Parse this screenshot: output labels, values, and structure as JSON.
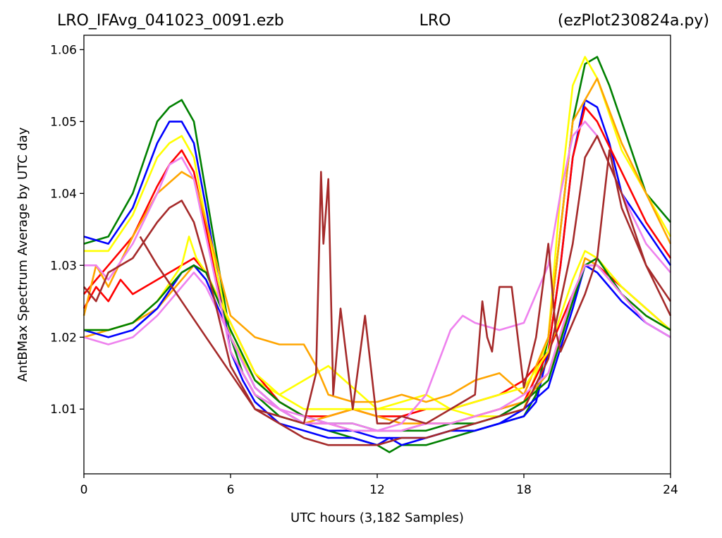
{
  "titles": {
    "left": "LRO_IFAvg_041023_0091.ezb",
    "center": "LRO",
    "right": "(ezPlot230824a.py)"
  },
  "chart_data": {
    "type": "line",
    "xlabel": "UTC hours  (3,182 Samples)",
    "ylabel": "AntBMax Spectrum Average by UTC day",
    "xlim": [
      0,
      24
    ],
    "ylim": [
      1.001,
      1.062
    ],
    "xticks": [
      0,
      6,
      12,
      18,
      24
    ],
    "xtick_labels": [
      "0",
      "6",
      "12",
      "18",
      "24"
    ],
    "yticks": [
      1.01,
      1.02,
      1.03,
      1.04,
      1.05,
      1.06
    ],
    "ytick_labels": [
      "1.01",
      "1.02",
      "1.03",
      "1.04",
      "1.05",
      "1.06"
    ],
    "grid": false,
    "legend": "none",
    "series": [
      {
        "color": "#008000",
        "x": [
          0,
          1,
          2,
          3,
          3.5,
          4,
          4.5,
          5,
          6,
          6.5,
          7,
          8,
          9,
          10,
          11,
          12,
          12.5,
          13,
          14,
          15,
          16,
          17,
          18,
          18.5,
          19,
          19.5,
          20,
          20.5,
          21,
          21.5,
          22,
          23,
          24
        ],
        "y": [
          1.033,
          1.034,
          1.04,
          1.05,
          1.052,
          1.053,
          1.05,
          1.04,
          1.02,
          1.015,
          1.012,
          1.009,
          1.008,
          1.007,
          1.006,
          1.005,
          1.004,
          1.005,
          1.005,
          1.006,
          1.007,
          1.008,
          1.009,
          1.012,
          1.02,
          1.035,
          1.05,
          1.058,
          1.059,
          1.055,
          1.05,
          1.04,
          1.036
        ]
      },
      {
        "color": "#0000ff",
        "x": [
          0,
          1,
          2,
          3,
          3.5,
          4,
          4.5,
          5,
          6,
          6.5,
          7,
          8,
          9,
          10,
          11,
          12,
          12.5,
          13,
          14,
          15,
          16,
          17,
          18,
          18.5,
          19,
          19.5,
          20,
          20.5,
          21,
          21.5,
          22,
          23,
          24
        ],
        "y": [
          1.034,
          1.033,
          1.038,
          1.047,
          1.05,
          1.05,
          1.047,
          1.038,
          1.018,
          1.014,
          1.011,
          1.008,
          1.007,
          1.006,
          1.006,
          1.005,
          1.006,
          1.005,
          1.006,
          1.007,
          1.007,
          1.008,
          1.009,
          1.011,
          1.018,
          1.03,
          1.045,
          1.053,
          1.052,
          1.047,
          1.04,
          1.035,
          1.03
        ]
      },
      {
        "color": "#ffff00",
        "x": [
          0,
          1,
          2,
          3,
          3.5,
          4,
          4.5,
          5,
          6,
          7,
          8,
          9,
          10,
          11,
          12,
          13,
          14,
          15,
          16,
          17,
          18,
          19,
          19.5,
          20,
          20.5,
          21,
          22,
          23,
          24
        ],
        "y": [
          1.032,
          1.032,
          1.037,
          1.045,
          1.047,
          1.048,
          1.045,
          1.036,
          1.02,
          1.014,
          1.012,
          1.014,
          1.016,
          1.013,
          1.01,
          1.011,
          1.012,
          1.01,
          1.009,
          1.009,
          1.01,
          1.02,
          1.04,
          1.055,
          1.059,
          1.056,
          1.046,
          1.04,
          1.034
        ]
      },
      {
        "color": "#ff0000",
        "x": [
          0,
          1,
          2,
          3,
          3.5,
          4,
          4.5,
          5,
          6,
          7,
          8,
          9,
          10,
          11,
          12,
          13,
          14,
          15,
          16,
          17,
          18,
          19,
          19.5,
          20,
          20.5,
          21,
          22,
          23,
          24
        ],
        "y": [
          1.026,
          1.03,
          1.034,
          1.041,
          1.044,
          1.046,
          1.043,
          1.035,
          1.018,
          1.012,
          1.01,
          1.008,
          1.008,
          1.007,
          1.007,
          1.007,
          1.008,
          1.008,
          1.009,
          1.01,
          1.011,
          1.018,
          1.03,
          1.045,
          1.052,
          1.05,
          1.043,
          1.036,
          1.031
        ]
      },
      {
        "color": "#ff0000",
        "x": [
          0,
          0.5,
          1,
          1.5,
          2,
          3,
          4,
          4.5,
          5,
          6,
          7,
          8,
          9,
          10,
          11,
          12,
          13,
          14,
          15,
          16,
          17,
          18,
          19,
          20,
          20.5,
          21,
          22,
          23,
          24
        ],
        "y": [
          1.024,
          1.027,
          1.025,
          1.028,
          1.026,
          1.028,
          1.03,
          1.031,
          1.029,
          1.022,
          1.015,
          1.011,
          1.009,
          1.009,
          1.01,
          1.009,
          1.009,
          1.01,
          1.01,
          1.011,
          1.012,
          1.014,
          1.018,
          1.026,
          1.03,
          1.03,
          1.027,
          1.024,
          1.021
        ]
      },
      {
        "color": "#ffa500",
        "x": [
          0,
          0.5,
          1,
          2,
          3,
          4,
          4.5,
          5,
          6,
          7,
          8,
          9,
          9.5,
          10,
          11,
          12,
          13,
          14,
          15,
          16,
          17,
          18,
          19,
          19.5,
          20,
          21,
          22,
          23,
          24
        ],
        "y": [
          1.023,
          1.03,
          1.027,
          1.034,
          1.04,
          1.043,
          1.042,
          1.036,
          1.023,
          1.02,
          1.019,
          1.019,
          1.016,
          1.012,
          1.011,
          1.011,
          1.012,
          1.011,
          1.012,
          1.014,
          1.015,
          1.012,
          1.02,
          1.035,
          1.05,
          1.056,
          1.047,
          1.04,
          1.033
        ]
      },
      {
        "color": "#ffa500",
        "x": [
          0,
          1,
          2,
          3,
          4,
          4.5,
          5,
          6,
          7,
          8,
          9,
          10,
          11,
          12,
          13,
          14,
          15,
          16,
          17,
          18,
          19,
          20,
          20.5,
          21,
          22,
          23,
          24
        ],
        "y": [
          1.02,
          1.021,
          1.022,
          1.024,
          1.028,
          1.03,
          1.028,
          1.02,
          1.013,
          1.01,
          1.008,
          1.009,
          1.01,
          1.009,
          1.008,
          1.008,
          1.008,
          1.009,
          1.01,
          1.011,
          1.015,
          1.025,
          1.031,
          1.03,
          1.026,
          1.023,
          1.021
        ]
      },
      {
        "color": "#ffff00",
        "x": [
          0,
          1,
          2,
          3,
          4,
          4.3,
          4.6,
          5,
          6,
          7,
          8,
          9,
          10,
          11,
          12,
          13,
          14,
          15,
          16,
          17,
          18,
          19,
          20,
          20.5,
          21,
          22,
          23,
          24
        ],
        "y": [
          1.021,
          1.021,
          1.022,
          1.025,
          1.03,
          1.034,
          1.031,
          1.029,
          1.022,
          1.015,
          1.012,
          1.01,
          1.01,
          1.01,
          1.01,
          1.01,
          1.01,
          1.01,
          1.011,
          1.012,
          1.013,
          1.018,
          1.028,
          1.032,
          1.031,
          1.027,
          1.024,
          1.021
        ]
      },
      {
        "color": "#0000ff",
        "x": [
          0,
          1,
          2,
          3,
          4,
          4.5,
          5,
          6,
          7,
          8,
          9,
          10,
          11,
          12,
          13,
          14,
          15,
          16,
          17,
          18,
          19,
          20,
          20.5,
          21,
          22,
          23,
          24
        ],
        "y": [
          1.021,
          1.02,
          1.021,
          1.024,
          1.029,
          1.03,
          1.028,
          1.02,
          1.013,
          1.01,
          1.008,
          1.007,
          1.007,
          1.006,
          1.006,
          1.006,
          1.007,
          1.007,
          1.008,
          1.01,
          1.013,
          1.024,
          1.03,
          1.029,
          1.025,
          1.022,
          1.02
        ]
      },
      {
        "color": "#008000",
        "x": [
          0,
          1,
          2,
          3,
          4,
          4.5,
          5,
          6,
          7,
          8,
          9,
          10,
          11,
          12,
          13,
          14,
          15,
          16,
          17,
          18,
          19,
          20,
          20.5,
          21,
          22,
          23,
          24
        ],
        "y": [
          1.021,
          1.021,
          1.022,
          1.025,
          1.029,
          1.03,
          1.029,
          1.021,
          1.014,
          1.011,
          1.009,
          1.008,
          1.008,
          1.007,
          1.007,
          1.007,
          1.008,
          1.008,
          1.009,
          1.011,
          1.014,
          1.025,
          1.03,
          1.031,
          1.026,
          1.023,
          1.021
        ]
      },
      {
        "color": "#ee82ee",
        "x": [
          0,
          0.5,
          1,
          2,
          3,
          3.5,
          4,
          4.5,
          5,
          6,
          7,
          8,
          9,
          10,
          11,
          12,
          13,
          14,
          15,
          15.5,
          16,
          17,
          18,
          19,
          19.5,
          20,
          20.5,
          21,
          22,
          23,
          24
        ],
        "y": [
          1.03,
          1.03,
          1.028,
          1.033,
          1.04,
          1.044,
          1.045,
          1.042,
          1.034,
          1.018,
          1.012,
          1.01,
          1.009,
          1.008,
          1.007,
          1.007,
          1.008,
          1.012,
          1.021,
          1.023,
          1.022,
          1.021,
          1.022,
          1.03,
          1.04,
          1.048,
          1.05,
          1.048,
          1.04,
          1.033,
          1.029
        ]
      },
      {
        "color": "#ee82ee",
        "x": [
          0,
          1,
          2,
          3,
          4,
          4.5,
          5,
          6,
          7,
          8,
          9,
          10,
          11,
          12,
          13,
          14,
          15,
          16,
          17,
          18,
          19,
          20,
          20.5,
          21,
          22,
          23,
          24
        ],
        "y": [
          1.02,
          1.019,
          1.02,
          1.023,
          1.027,
          1.029,
          1.027,
          1.02,
          1.013,
          1.01,
          1.008,
          1.008,
          1.008,
          1.007,
          1.007,
          1.008,
          1.008,
          1.009,
          1.01,
          1.012,
          1.015,
          1.026,
          1.03,
          1.03,
          1.026,
          1.022,
          1.02
        ]
      },
      {
        "color": "#a52a2a",
        "x": [
          0,
          0.5,
          1,
          2,
          3,
          3.5,
          4,
          4.5,
          5,
          6,
          7,
          8,
          9,
          10,
          11,
          12,
          13,
          14,
          15,
          16,
          17,
          18,
          19,
          20,
          20.5,
          21,
          22,
          23,
          24
        ],
        "y": [
          1.027,
          1.025,
          1.029,
          1.031,
          1.036,
          1.038,
          1.039,
          1.036,
          1.03,
          1.016,
          1.01,
          1.008,
          1.006,
          1.005,
          1.005,
          1.005,
          1.006,
          1.006,
          1.007,
          1.008,
          1.009,
          1.01,
          1.017,
          1.033,
          1.045,
          1.048,
          1.04,
          1.03,
          1.025
        ]
      },
      {
        "color": "#a52a2a",
        "x": [
          2.3,
          3,
          4,
          5,
          6,
          7,
          8,
          9,
          9.5,
          9.7,
          9.8,
          10,
          10.2,
          10.5,
          11,
          11.5,
          12,
          12.5,
          13,
          14,
          15,
          16,
          16.3,
          16.5,
          16.7,
          17,
          17.5,
          18,
          18.5,
          19,
          19.3,
          19.5,
          20,
          20.5,
          21,
          21.5,
          22,
          23,
          24
        ],
        "y": [
          1.034,
          1.03,
          1.025,
          1.02,
          1.015,
          1.01,
          1.009,
          1.008,
          1.015,
          1.043,
          1.033,
          1.042,
          1.012,
          1.024,
          1.01,
          1.023,
          1.008,
          1.008,
          1.009,
          1.008,
          1.01,
          1.012,
          1.025,
          1.02,
          1.018,
          1.027,
          1.027,
          1.013,
          1.02,
          1.033,
          1.021,
          1.018,
          1.022,
          1.026,
          1.031,
          1.046,
          1.038,
          1.03,
          1.023
        ]
      }
    ]
  }
}
